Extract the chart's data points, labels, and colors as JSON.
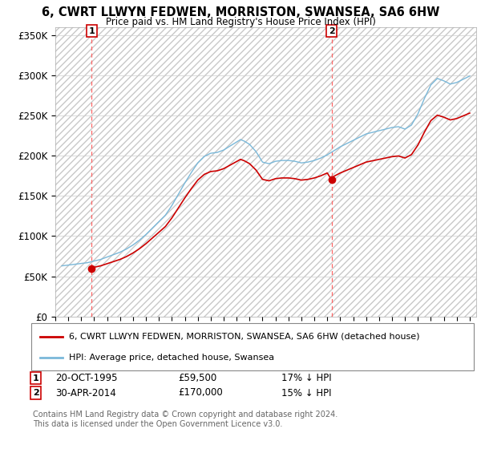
{
  "title": "6, CWRT LLWYN FEDWEN, MORRISTON, SWANSEA, SA6 6HW",
  "subtitle": "Price paid vs. HM Land Registry's House Price Index (HPI)",
  "hpi_color": "#7ab8d9",
  "price_color": "#cc0000",
  "dashed_color": "#ff6666",
  "ylim": [
    0,
    360000
  ],
  "yticks": [
    0,
    50000,
    100000,
    150000,
    200000,
    250000,
    300000,
    350000
  ],
  "ytick_labels": [
    "£0",
    "£50K",
    "£100K",
    "£150K",
    "£200K",
    "£250K",
    "£300K",
    "£350K"
  ],
  "xlim_start": 1993.0,
  "xlim_end": 2025.5,
  "sale1_x": 1995.8,
  "sale1_y": 59500,
  "sale1_label": "1",
  "sale1_date": "20-OCT-1995",
  "sale1_price": "£59,500",
  "sale1_hpi": "17% ↓ HPI",
  "sale2_x": 2014.33,
  "sale2_y": 170000,
  "sale2_label": "2",
  "sale2_date": "30-APR-2014",
  "sale2_price": "£170,000",
  "sale2_hpi": "15% ↓ HPI",
  "legend_line1": "6, CWRT LLWYN FEDWEN, MORRISTON, SWANSEA, SA6 6HW (detached house)",
  "legend_line2": "HPI: Average price, detached house, Swansea",
  "footnote": "Contains HM Land Registry data © Crown copyright and database right 2024.\nThis data is licensed under the Open Government Licence v3.0."
}
